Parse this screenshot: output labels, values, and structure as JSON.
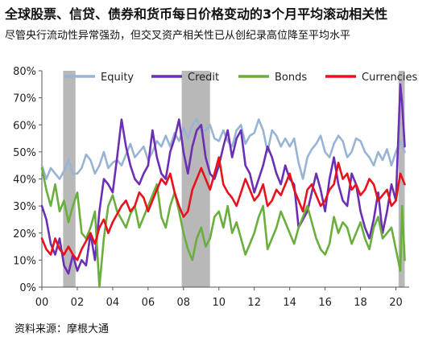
{
  "header": {
    "title": "全球股票、信贷、债券和货币每日价格变动的3个月平均滚动相关性",
    "subtitle": "尽管央行流动性异常强劲，但交叉资产相关性已从创纪录高位降至平均水平"
  },
  "footer": {
    "source": "资料来源：摩根大通"
  },
  "chart_data": {
    "type": "line",
    "x_unit": "year",
    "xlim": [
      2000.0,
      2020.75
    ],
    "ylim": [
      0,
      80
    ],
    "y_ticks": [
      "0%",
      "10%",
      "20%",
      "30%",
      "40%",
      "50%",
      "60%",
      "70%",
      "80%"
    ],
    "x_ticks": [
      "00",
      "02",
      "04",
      "06",
      "08",
      "10",
      "12",
      "14",
      "16",
      "18",
      "20"
    ],
    "grid": false,
    "legend": "top",
    "shaded_periods": [
      [
        2001.2,
        2001.9
      ],
      [
        2007.9,
        2009.5
      ],
      [
        2020.15,
        2020.5
      ]
    ],
    "series": [
      {
        "name": "Equity",
        "color": "#98b4d4",
        "x": [
          2000.0,
          2000.25,
          2000.5,
          2000.75,
          2001.0,
          2001.25,
          2001.5,
          2001.75,
          2002.0,
          2002.25,
          2002.5,
          2002.75,
          2003.0,
          2003.25,
          2003.5,
          2003.75,
          2004.0,
          2004.25,
          2004.5,
          2004.75,
          2005.0,
          2005.25,
          2005.5,
          2005.75,
          2006.0,
          2006.25,
          2006.5,
          2006.75,
          2007.0,
          2007.25,
          2007.5,
          2007.75,
          2008.0,
          2008.25,
          2008.5,
          2008.75,
          2009.0,
          2009.25,
          2009.5,
          2009.75,
          2010.0,
          2010.25,
          2010.5,
          2010.75,
          2011.0,
          2011.25,
          2011.5,
          2011.75,
          2012.0,
          2012.25,
          2012.5,
          2012.75,
          2013.0,
          2013.25,
          2013.5,
          2013.75,
          2014.0,
          2014.25,
          2014.5,
          2014.75,
          2015.0,
          2015.25,
          2015.5,
          2015.75,
          2016.0,
          2016.25,
          2016.5,
          2016.75,
          2017.0,
          2017.25,
          2017.5,
          2017.75,
          2018.0,
          2018.25,
          2018.5,
          2018.75,
          2019.0,
          2019.25,
          2019.5,
          2019.75,
          2020.0,
          2020.25,
          2020.5
        ],
        "values": [
          45,
          40,
          44,
          42,
          40,
          43,
          47,
          42,
          42,
          44,
          49,
          47,
          42,
          45,
          50,
          44,
          46,
          47,
          45,
          49,
          53,
          48,
          50,
          52,
          47,
          50,
          54,
          52,
          56,
          52,
          57,
          54,
          59,
          55,
          60,
          62,
          58,
          58,
          60,
          55,
          54,
          58,
          54,
          52,
          58,
          60,
          53,
          56,
          57,
          62,
          58,
          50,
          58,
          56,
          52,
          55,
          52,
          55,
          46,
          40,
          48,
          51,
          53,
          56,
          50,
          48,
          53,
          56,
          54,
          48,
          50,
          55,
          54,
          50,
          48,
          45,
          50,
          47,
          51,
          45,
          50,
          54,
          50
        ]
      },
      {
        "name": "Credit",
        "color": "#6b2fb3",
        "x": [
          2000.0,
          2000.25,
          2000.5,
          2000.75,
          2001.0,
          2001.25,
          2001.5,
          2001.75,
          2002.0,
          2002.25,
          2002.5,
          2002.75,
          2003.0,
          2003.25,
          2003.5,
          2003.75,
          2004.0,
          2004.25,
          2004.5,
          2004.75,
          2005.0,
          2005.25,
          2005.5,
          2005.75,
          2006.0,
          2006.25,
          2006.5,
          2006.75,
          2007.0,
          2007.25,
          2007.5,
          2007.75,
          2008.0,
          2008.25,
          2008.5,
          2008.75,
          2009.0,
          2009.25,
          2009.5,
          2009.75,
          2010.0,
          2010.25,
          2010.5,
          2010.75,
          2011.0,
          2011.25,
          2011.5,
          2011.75,
          2012.0,
          2012.25,
          2012.5,
          2012.75,
          2013.0,
          2013.25,
          2013.5,
          2013.75,
          2014.0,
          2014.25,
          2014.5,
          2014.75,
          2015.0,
          2015.25,
          2015.5,
          2015.75,
          2016.0,
          2016.25,
          2016.5,
          2016.75,
          2017.0,
          2017.25,
          2017.5,
          2017.75,
          2018.0,
          2018.25,
          2018.5,
          2018.75,
          2019.0,
          2019.25,
          2019.5,
          2019.75,
          2020.0,
          2020.25,
          2020.35,
          2020.5
        ],
        "values": [
          30,
          25,
          16,
          12,
          18,
          8,
          5,
          12,
          6,
          10,
          8,
          20,
          10,
          28,
          40,
          38,
          35,
          48,
          62,
          52,
          45,
          40,
          38,
          42,
          45,
          58,
          48,
          42,
          40,
          50,
          55,
          62,
          50,
          42,
          52,
          58,
          60,
          48,
          42,
          40,
          45,
          52,
          58,
          48,
          55,
          58,
          45,
          42,
          35,
          40,
          45,
          52,
          48,
          42,
          38,
          45,
          40,
          38,
          22,
          25,
          28,
          35,
          42,
          36,
          28,
          40,
          48,
          38,
          32,
          30,
          42,
          38,
          28,
          22,
          18,
          25,
          35,
          20,
          28,
          38,
          32,
          75,
          68,
          52
        ]
      },
      {
        "name": "Bonds",
        "color": "#6aaf3e",
        "x": [
          2000.0,
          2000.25,
          2000.5,
          2000.75,
          2001.0,
          2001.25,
          2001.5,
          2001.75,
          2002.0,
          2002.25,
          2002.5,
          2002.75,
          2003.0,
          2003.25,
          2003.5,
          2003.75,
          2004.0,
          2004.25,
          2004.5,
          2004.75,
          2005.0,
          2005.25,
          2005.5,
          2005.75,
          2006.0,
          2006.25,
          2006.5,
          2006.75,
          2007.0,
          2007.25,
          2007.5,
          2007.75,
          2008.0,
          2008.25,
          2008.5,
          2008.75,
          2009.0,
          2009.25,
          2009.5,
          2009.75,
          2010.0,
          2010.25,
          2010.5,
          2010.75,
          2011.0,
          2011.25,
          2011.5,
          2011.75,
          2012.0,
          2012.25,
          2012.5,
          2012.75,
          2013.0,
          2013.25,
          2013.5,
          2013.75,
          2014.0,
          2014.25,
          2014.5,
          2014.75,
          2015.0,
          2015.25,
          2015.5,
          2015.75,
          2016.0,
          2016.25,
          2016.5,
          2016.75,
          2017.0,
          2017.25,
          2017.5,
          2017.75,
          2018.0,
          2018.25,
          2018.5,
          2018.75,
          2019.0,
          2019.25,
          2019.5,
          2019.75,
          2020.0,
          2020.25,
          2020.35,
          2020.5
        ],
        "values": [
          44,
          36,
          30,
          38,
          28,
          32,
          24,
          30,
          35,
          20,
          18,
          22,
          28,
          0,
          18,
          30,
          34,
          28,
          25,
          22,
          27,
          30,
          22,
          26,
          30,
          34,
          38,
          26,
          22,
          30,
          35,
          28,
          20,
          14,
          10,
          18,
          22,
          15,
          18,
          26,
          28,
          22,
          30,
          20,
          24,
          18,
          12,
          16,
          20,
          26,
          30,
          14,
          18,
          22,
          28,
          24,
          20,
          16,
          22,
          26,
          30,
          24,
          18,
          14,
          12,
          16,
          26,
          20,
          24,
          22,
          16,
          20,
          24,
          18,
          14,
          22,
          26,
          18,
          20,
          22,
          14,
          6,
          30,
          10
        ]
      },
      {
        "name": "Currencies",
        "color": "#e8111c",
        "x": [
          2000.0,
          2000.25,
          2000.5,
          2000.75,
          2001.0,
          2001.25,
          2001.5,
          2001.75,
          2002.0,
          2002.25,
          2002.5,
          2002.75,
          2003.0,
          2003.25,
          2003.5,
          2003.75,
          2004.0,
          2004.25,
          2004.5,
          2004.75,
          2005.0,
          2005.25,
          2005.5,
          2005.75,
          2006.0,
          2006.25,
          2006.5,
          2006.75,
          2007.0,
          2007.25,
          2007.5,
          2007.75,
          2008.0,
          2008.25,
          2008.5,
          2008.75,
          2009.0,
          2009.25,
          2009.5,
          2009.75,
          2010.0,
          2010.25,
          2010.5,
          2010.75,
          2011.0,
          2011.25,
          2011.5,
          2011.75,
          2012.0,
          2012.25,
          2012.5,
          2012.75,
          2013.0,
          2013.25,
          2013.5,
          2013.75,
          2014.0,
          2014.25,
          2014.5,
          2014.75,
          2015.0,
          2015.25,
          2015.5,
          2015.75,
          2016.0,
          2016.25,
          2016.5,
          2016.75,
          2017.0,
          2017.25,
          2017.5,
          2017.75,
          2018.0,
          2018.25,
          2018.5,
          2018.75,
          2019.0,
          2019.25,
          2019.5,
          2019.75,
          2020.0,
          2020.25,
          2020.5
        ],
        "values": [
          18,
          14,
          12,
          18,
          14,
          12,
          15,
          12,
          10,
          14,
          17,
          20,
          16,
          22,
          25,
          20,
          24,
          27,
          30,
          32,
          28,
          30,
          35,
          33,
          28,
          32,
          36,
          40,
          38,
          42,
          35,
          30,
          26,
          28,
          36,
          40,
          44,
          40,
          36,
          42,
          48,
          38,
          35,
          33,
          30,
          35,
          40,
          36,
          32,
          34,
          38,
          30,
          32,
          36,
          34,
          38,
          42,
          36,
          32,
          28,
          36,
          38,
          34,
          30,
          32,
          36,
          38,
          46,
          40,
          42,
          36,
          38,
          34,
          36,
          40,
          38,
          32,
          34,
          36,
          30,
          32,
          42,
          38
        ]
      }
    ]
  }
}
